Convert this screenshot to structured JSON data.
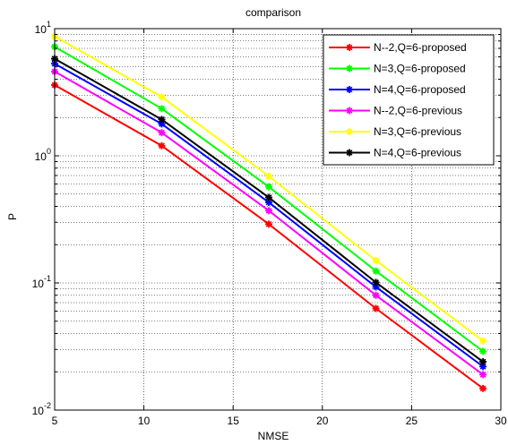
{
  "chart_data": {
    "type": "line",
    "title": "comparison",
    "xlabel": "NMSE",
    "ylabel": "P",
    "xlim": [
      5,
      30
    ],
    "ylim": [
      0.01,
      10
    ],
    "yscale": "log",
    "grid": true,
    "grid_style": "dotted",
    "legend_position": "top-right",
    "x_ticks": [
      {
        "value": 5,
        "label": "5"
      },
      {
        "value": 10,
        "label": "10"
      },
      {
        "value": 15,
        "label": "15"
      },
      {
        "value": 20,
        "label": "20"
      },
      {
        "value": 25,
        "label": "25"
      },
      {
        "value": 30,
        "label": "30"
      }
    ],
    "y_ticks": [
      {
        "value": 10,
        "base": "10",
        "exp": "1"
      },
      {
        "value": 1,
        "base": "10",
        "exp": "0"
      },
      {
        "value": 0.1,
        "base": "10",
        "exp": "-1"
      },
      {
        "value": 0.01,
        "base": "10",
        "exp": "-2"
      }
    ],
    "x": [
      5,
      11,
      17,
      23,
      29
    ],
    "series": [
      {
        "name": "N--2,Q=6-proposed",
        "color": "#ff0000",
        "values": [
          3.6,
          1.2,
          0.29,
          0.063,
          0.0148
        ]
      },
      {
        "name": "N=3,Q=6-proposed",
        "color": "#00ff00",
        "values": [
          7.2,
          2.35,
          0.57,
          0.124,
          0.029
        ]
      },
      {
        "name": "N=4,Q=6-proposed",
        "color": "#0000ff",
        "values": [
          5.3,
          1.78,
          0.43,
          0.093,
          0.022
        ]
      },
      {
        "name": "N--2,Q=6-previous",
        "color": "#ff00ff",
        "values": [
          4.6,
          1.52,
          0.37,
          0.08,
          0.019
        ]
      },
      {
        "name": "N=3,Q=6-previous",
        "color": "#ffff00",
        "values": [
          8.7,
          2.9,
          0.69,
          0.15,
          0.035
        ]
      },
      {
        "name": "N=4,Q=6-previous",
        "color": "#000000",
        "values": [
          5.8,
          1.93,
          0.47,
          0.101,
          0.024
        ]
      }
    ]
  }
}
